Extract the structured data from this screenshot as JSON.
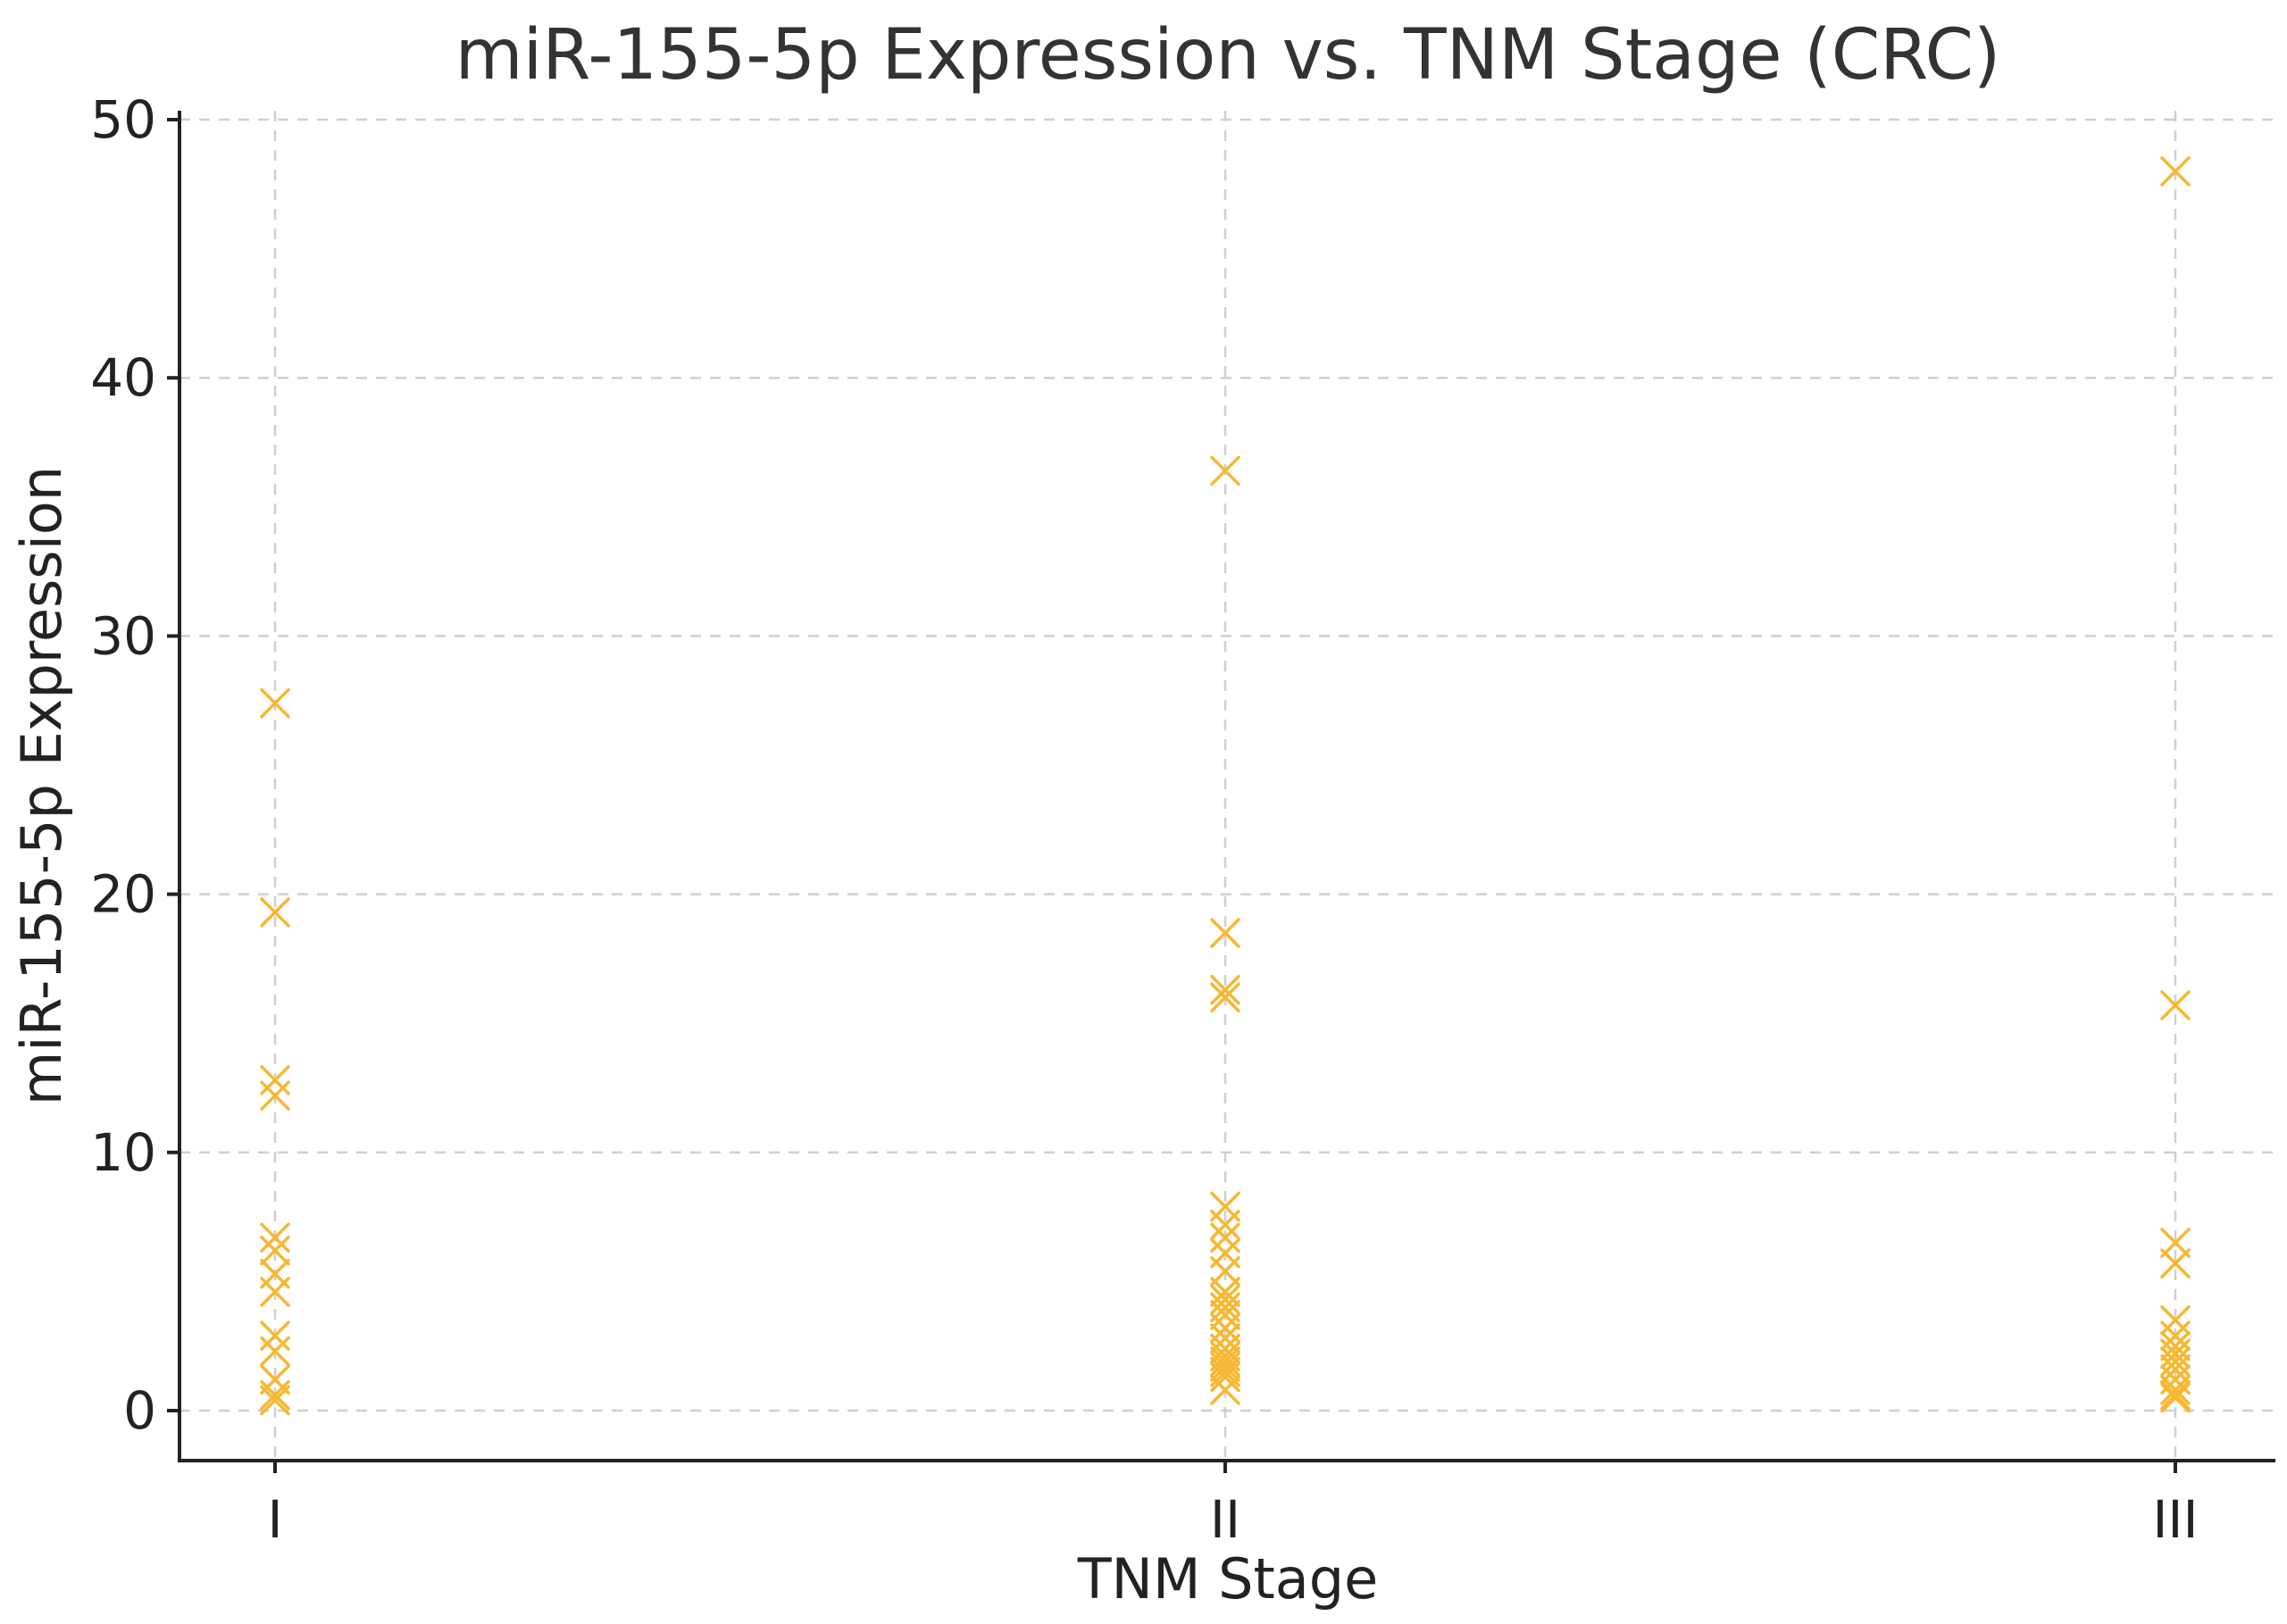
{
  "chart_data": {
    "type": "scatter",
    "title": "miR-155-5p Expression vs. TNM Stage (CRC)",
    "xlabel": "TNM Stage",
    "ylabel": "miR-155-5p Expression",
    "categories": [
      "I",
      "II",
      "III"
    ],
    "ylim": [
      -2,
      50
    ],
    "yticks": [
      0,
      10,
      20,
      30,
      40,
      50
    ],
    "grid": true,
    "marker": "x",
    "colors": {
      "marker": "#f7b731"
    },
    "series": [
      {
        "category": "I",
        "values": [
          27.4,
          19.3,
          12.8,
          12.2,
          6.7,
          6.2,
          5.3,
          4.6,
          2.9,
          2.3,
          1.2,
          0.6,
          0.4
        ]
      },
      {
        "category": "II",
        "values": [
          36.4,
          18.5,
          16.3,
          16.0,
          7.9,
          7.2,
          6.7,
          6.1,
          5.4,
          4.6,
          4.3,
          4.0,
          3.7,
          3.2,
          2.8,
          2.4,
          2.1,
          1.9,
          1.7,
          1.5,
          1.3,
          0.8
        ]
      },
      {
        "category": "III",
        "values": [
          48.0,
          15.7,
          6.5,
          5.7,
          3.5,
          2.9,
          2.5,
          2.2,
          1.9,
          1.6,
          1.2,
          0.8,
          0.6,
          0.5
        ]
      }
    ]
  }
}
